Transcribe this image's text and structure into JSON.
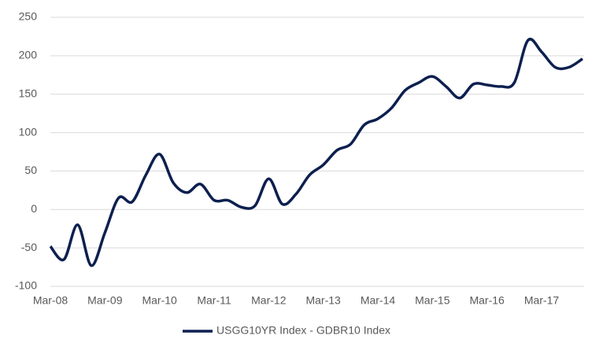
{
  "chart_data": {
    "type": "line",
    "categories": [
      "Mar-08",
      null,
      null,
      null,
      "Mar-09",
      null,
      null,
      null,
      "Mar-10",
      null,
      null,
      null,
      "Mar-11",
      null,
      null,
      null,
      "Mar-12",
      null,
      null,
      null,
      "Mar-13",
      null,
      null,
      null,
      "Mar-14",
      null,
      null,
      null,
      "Mar-15",
      null,
      null,
      null,
      "Mar-16",
      null,
      null,
      null,
      "Mar-17",
      null,
      null,
      null
    ],
    "series": [
      {
        "name": "USGG10YR Index - GDBR10 Index",
        "color": "#0c1f4f",
        "values": [
          -48,
          -65,
          -20,
          -73,
          -30,
          15,
          10,
          45,
          72,
          35,
          22,
          33,
          12,
          12,
          3,
          5,
          40,
          7,
          20,
          45,
          58,
          77,
          85,
          110,
          118,
          132,
          155,
          165,
          173,
          160,
          145,
          163,
          162,
          160,
          165,
          220,
          205,
          185,
          185,
          196
        ]
      }
    ],
    "ylim": [
      -100,
      250
    ],
    "yticks": [
      -100,
      -50,
      0,
      50,
      100,
      150,
      200,
      250
    ],
    "grid": true,
    "legend": "bottom"
  }
}
